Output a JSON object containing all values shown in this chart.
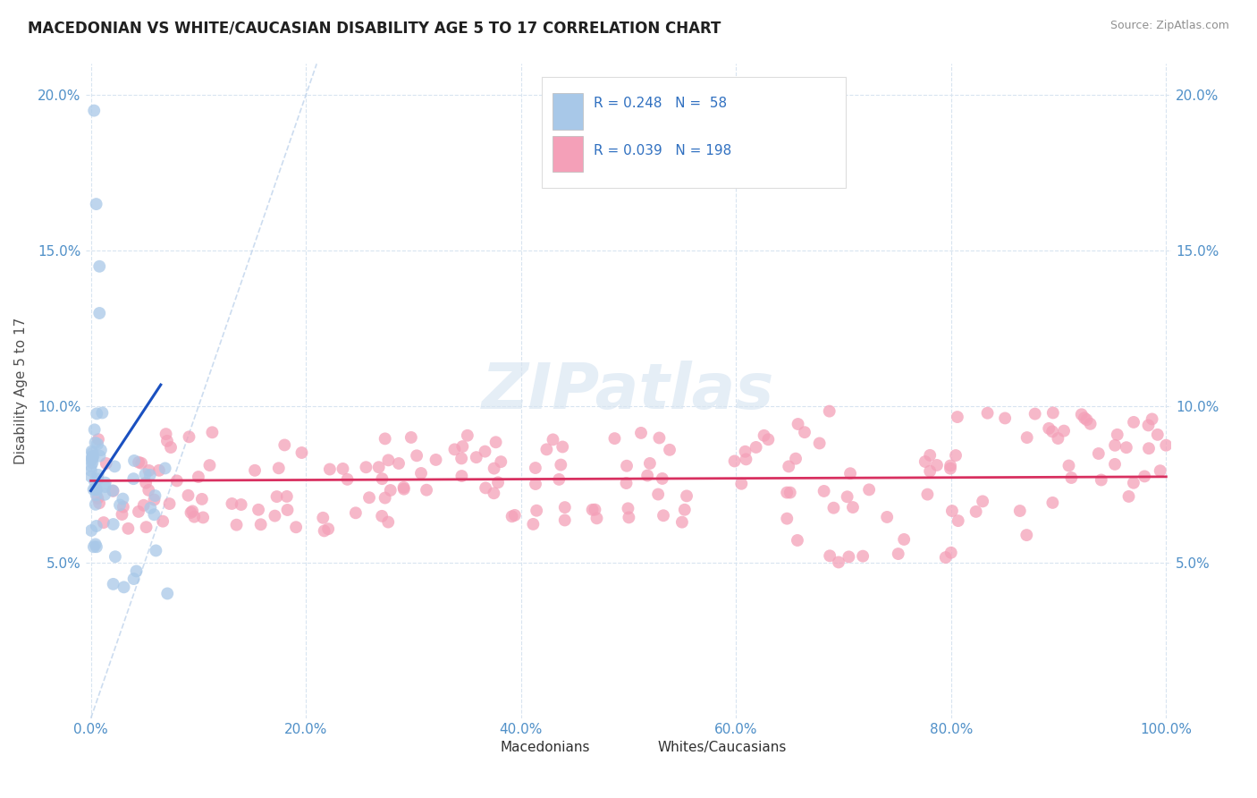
{
  "title": "MACEDONIAN VS WHITE/CAUCASIAN DISABILITY AGE 5 TO 17 CORRELATION CHART",
  "source": "Source: ZipAtlas.com",
  "ylabel": "Disability Age 5 to 17",
  "xlabel": "",
  "xlim": [
    -0.005,
    1.005
  ],
  "ylim": [
    0.0,
    0.21
  ],
  "yticks": [
    0.05,
    0.1,
    0.15,
    0.2
  ],
  "ytick_labels": [
    "5.0%",
    "10.0%",
    "15.0%",
    "20.0%"
  ],
  "xticks": [
    0.0,
    0.2,
    0.4,
    0.6,
    0.8,
    1.0
  ],
  "xtick_labels": [
    "0.0%",
    "20.0%",
    "40.0%",
    "60.0%",
    "80.0%",
    "100.0%"
  ],
  "legend_r1": "R = 0.248",
  "legend_n1": "N =  58",
  "legend_r2": "R = 0.039",
  "legend_n2": "N = 198",
  "macedonian_color": "#a8c8e8",
  "white_color": "#f4a0b8",
  "trend_mac_color": "#1a50c0",
  "trend_white_color": "#d83060",
  "ref_line_color": "#c0d4ec",
  "watermark_color": "#d0e0f0",
  "background_color": "#ffffff",
  "title_color": "#202020",
  "title_fontsize": 12,
  "axis_label_color": "#5090c8",
  "grid_color": "#d8e4f0",
  "mac_trend_x0": 0.0,
  "mac_trend_y0": 0.073,
  "mac_trend_x1": 0.065,
  "mac_trend_y1": 0.107,
  "white_trend_x0": 0.0,
  "white_trend_y0": 0.0762,
  "white_trend_x1": 1.0,
  "white_trend_y1": 0.0775
}
